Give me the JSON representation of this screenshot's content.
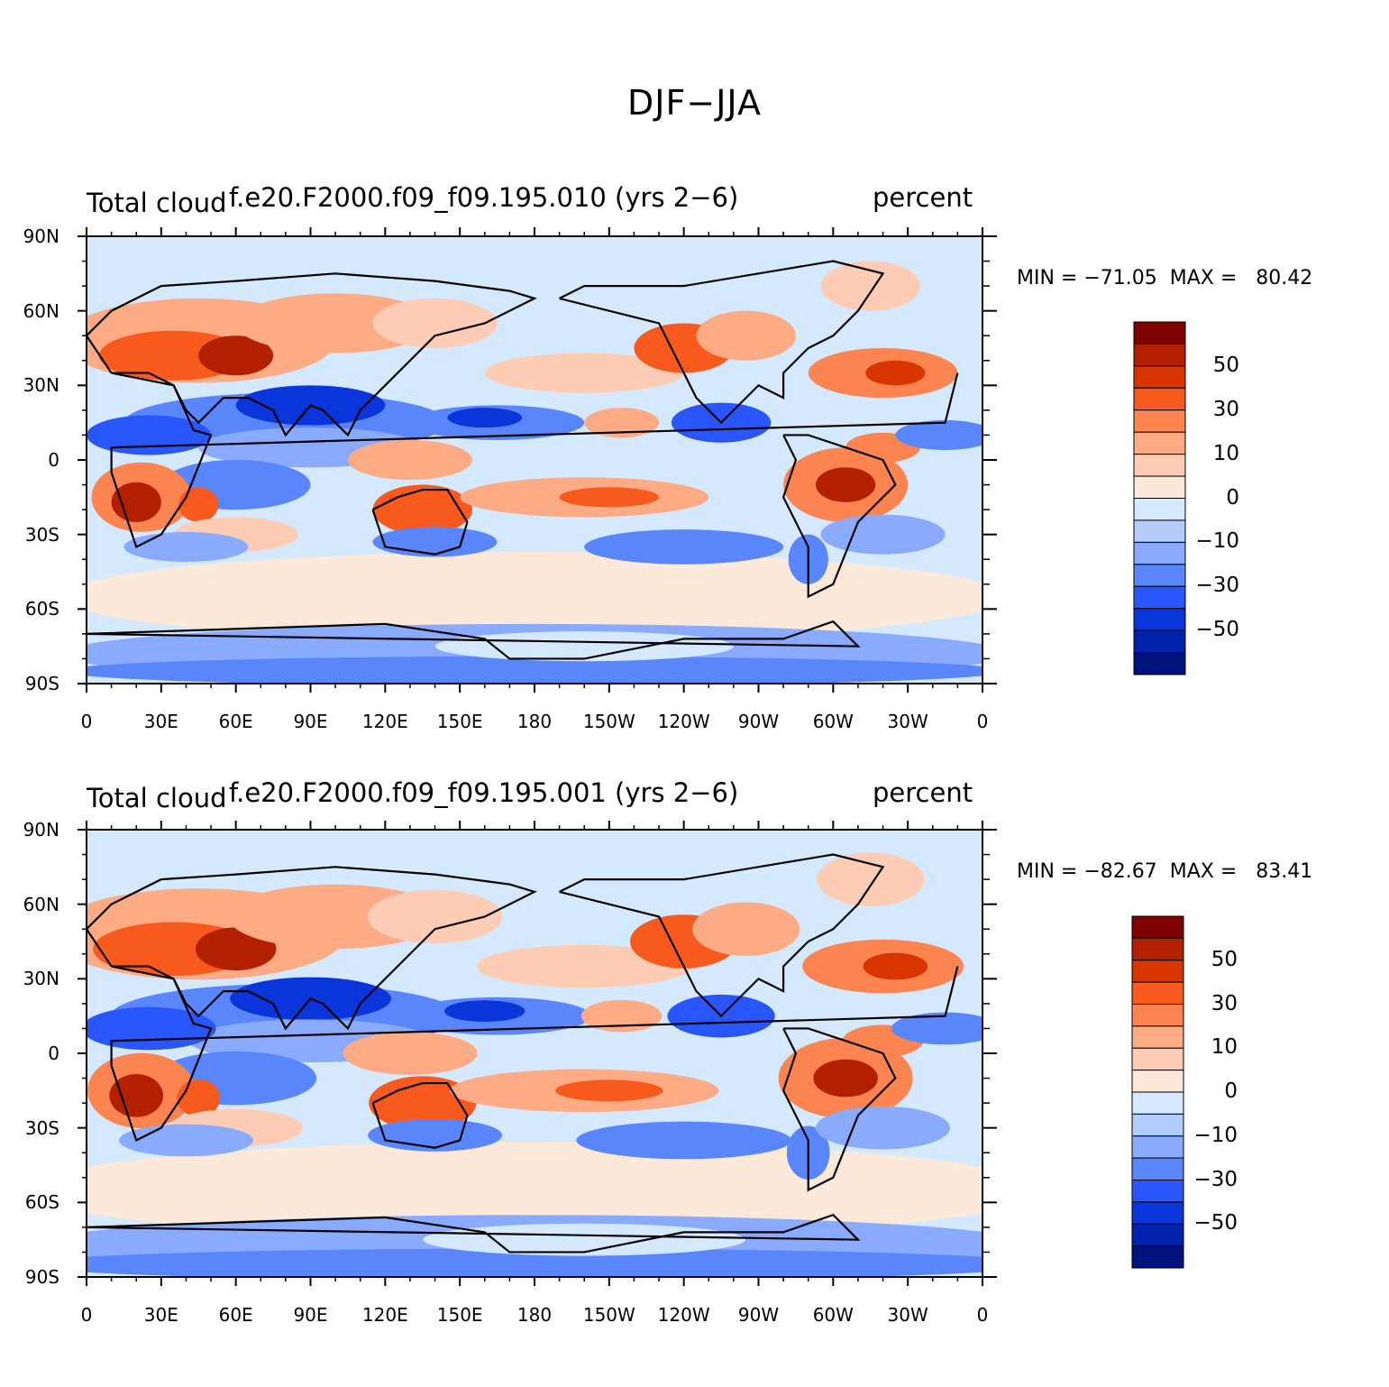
{
  "title": "DJF−JJA",
  "panels": [
    {
      "left_string": "Total cloud",
      "case_string": "f.e20.F2000.f09_f09.195.010 (yrs 2−6)",
      "units": "percent",
      "min_label": "MIN = −71.05  MAX =   80.42",
      "min": -71.05,
      "max": 80.42
    },
    {
      "left_string": "Total cloud",
      "case_string": "f.e20.F2000.f09_f09.195.001 (yrs 2−6)",
      "units": "percent",
      "min_label": "MIN = −82.67  MAX =   83.41",
      "min": -82.67,
      "max": 83.41
    }
  ],
  "lat_labels": [
    "90N",
    "60N",
    "30N",
    "0",
    "30S",
    "60S",
    "90S"
  ],
  "lon_labels": [
    "0",
    "30E",
    "60E",
    "90E",
    "120E",
    "150E",
    "180",
    "150W",
    "120W",
    "90W",
    "60W",
    "30W",
    "0"
  ],
  "colorbar": {
    "labels": [
      "50",
      "30",
      "10",
      "0",
      "−10",
      "−30",
      "−50"
    ],
    "colors": [
      "#7e0000",
      "#b22000",
      "#d93500",
      "#f75a1c",
      "#fb8450",
      "#fdab84",
      "#fcccb4",
      "#fde9d9",
      "#d5e9fe",
      "#b4cdfd",
      "#8aabfd",
      "#5a86fb",
      "#2856fb",
      "#0a35db",
      "#0421ad",
      "#01127c"
    ]
  }
}
